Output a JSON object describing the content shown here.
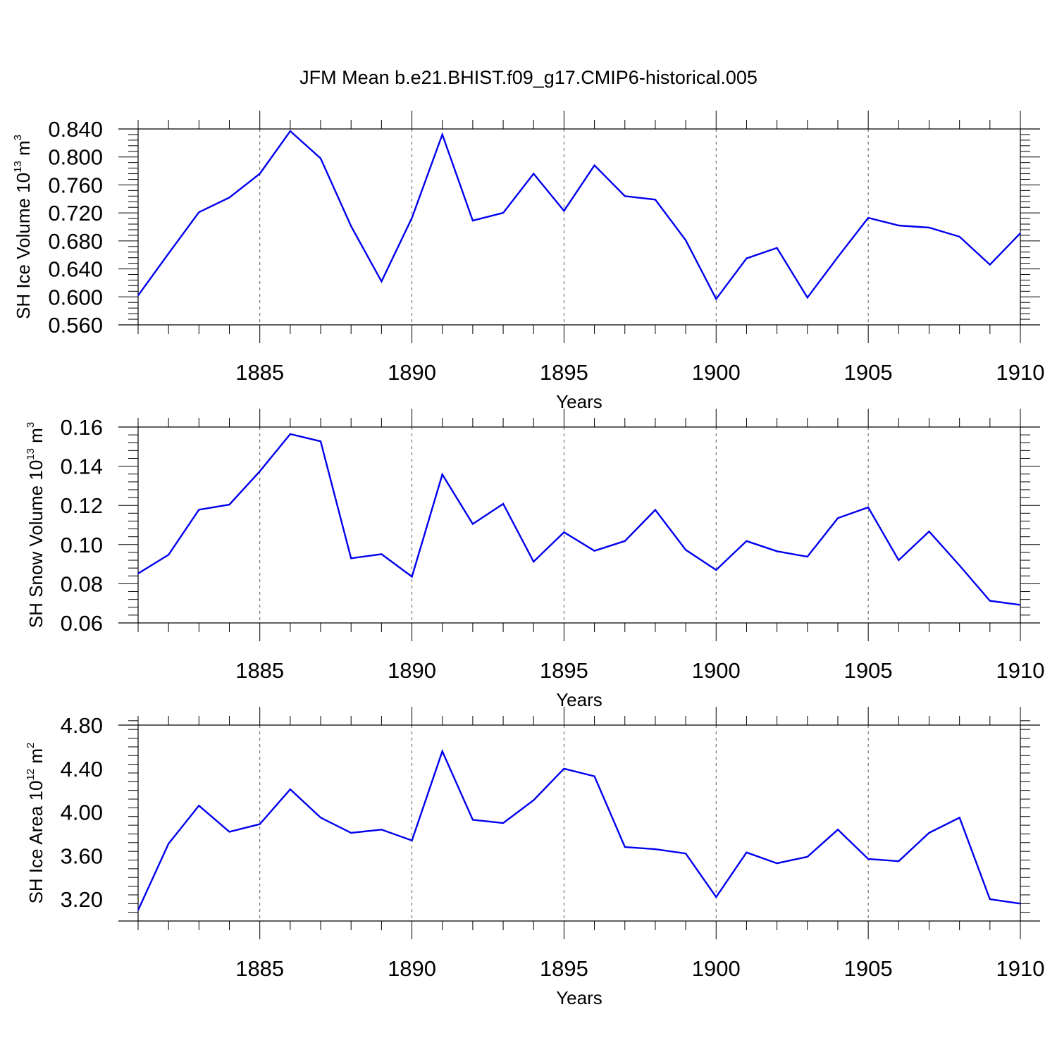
{
  "title": "JFM Mean b.e21.BHIST.f09_g17.CMIP6-historical.005",
  "chart_data": [
    {
      "type": "line",
      "ylabel": "SH Ice Volume 10",
      "ylabel_exp": "13",
      "ylabel_unit": " m",
      "ylabel_unit_exp": "3",
      "xlabel": "Years",
      "xlim": [
        1881,
        1910
      ],
      "ylim": [
        0.56,
        0.84
      ],
      "yticks": [
        0.56,
        0.6,
        0.64,
        0.68,
        0.72,
        0.76,
        0.8,
        0.84
      ],
      "ytick_labels": [
        "0.560",
        "0.600",
        "0.640",
        "0.680",
        "0.720",
        "0.760",
        "0.800",
        "0.840"
      ],
      "xticks": [
        1885,
        1890,
        1895,
        1900,
        1905,
        1910
      ],
      "xtick_labels": [
        "1885",
        "1890",
        "1895",
        "1900",
        "1905",
        "1910"
      ],
      "color": "#0000ee",
      "x": [
        1881,
        1882,
        1883,
        1884,
        1885,
        1886,
        1887,
        1888,
        1889,
        1890,
        1891,
        1892,
        1893,
        1894,
        1895,
        1896,
        1897,
        1898,
        1899,
        1900,
        1901,
        1902,
        1903,
        1904,
        1905,
        1906,
        1907,
        1908,
        1909,
        1910
      ],
      "values": [
        0.602,
        0.662,
        0.721,
        0.742,
        0.776,
        0.837,
        0.798,
        0.701,
        0.622,
        0.713,
        0.832,
        0.709,
        0.72,
        0.776,
        0.723,
        0.788,
        0.744,
        0.739,
        0.681,
        0.597,
        0.655,
        0.67,
        0.599,
        0.657,
        0.713,
        0.702,
        0.699,
        0.686,
        0.646,
        0.691
      ]
    },
    {
      "type": "line",
      "ylabel": "SH Snow Volume 10",
      "ylabel_exp": "13",
      "ylabel_unit": " m",
      "ylabel_unit_exp": "3",
      "xlabel": "Years",
      "xlim": [
        1881,
        1910
      ],
      "ylim": [
        0.06,
        0.16
      ],
      "yticks": [
        0.06,
        0.08,
        0.1,
        0.12,
        0.14,
        0.16
      ],
      "ytick_labels": [
        "0.06",
        "0.08",
        "0.10",
        "0.12",
        "0.14",
        "0.16"
      ],
      "xticks": [
        1885,
        1890,
        1895,
        1900,
        1905,
        1910
      ],
      "xtick_labels": [
        "1885",
        "1890",
        "1895",
        "1900",
        "1905",
        "1910"
      ],
      "color": "#0000ee",
      "x": [
        1881,
        1882,
        1883,
        1884,
        1885,
        1886,
        1887,
        1888,
        1889,
        1890,
        1891,
        1892,
        1893,
        1894,
        1895,
        1896,
        1897,
        1898,
        1899,
        1900,
        1901,
        1902,
        1903,
        1904,
        1905,
        1906,
        1907,
        1908,
        1909,
        1910
      ],
      "values": [
        0.0852,
        0.0948,
        0.1178,
        0.1204,
        0.1374,
        0.1564,
        0.1527,
        0.093,
        0.0951,
        0.0836,
        0.1358,
        0.1105,
        0.1208,
        0.0913,
        0.1063,
        0.0968,
        0.1018,
        0.1177,
        0.0973,
        0.087,
        0.1018,
        0.0966,
        0.0938,
        0.1135,
        0.119,
        0.092,
        0.1067,
        0.0893,
        0.0713,
        0.0692
      ]
    },
    {
      "type": "line",
      "ylabel": "SH Ice Area 10",
      "ylabel_exp": "12",
      "ylabel_unit": " m",
      "ylabel_unit_exp": "2",
      "xlabel": "Years",
      "xlim": [
        1881,
        1910
      ],
      "ylim": [
        3.0,
        4.8
      ],
      "yticks": [
        3.2,
        3.6,
        4.0,
        4.4,
        4.8
      ],
      "ytick_labels": [
        "3.20",
        "3.60",
        "4.00",
        "4.40",
        "4.80"
      ],
      "xticks": [
        1885,
        1890,
        1895,
        1900,
        1905,
        1910
      ],
      "xtick_labels": [
        "1885",
        "1890",
        "1895",
        "1900",
        "1905",
        "1910"
      ],
      "color": "#0000ee",
      "x": [
        1881,
        1882,
        1883,
        1884,
        1885,
        1886,
        1887,
        1888,
        1889,
        1890,
        1891,
        1892,
        1893,
        1894,
        1895,
        1896,
        1897,
        1898,
        1899,
        1900,
        1901,
        1902,
        1903,
        1904,
        1905,
        1906,
        1907,
        1908,
        1909,
        1910
      ],
      "values": [
        3.1,
        3.71,
        4.06,
        3.82,
        3.89,
        4.21,
        3.95,
        3.81,
        3.84,
        3.74,
        4.56,
        3.93,
        3.9,
        4.11,
        4.4,
        4.33,
        3.68,
        3.66,
        3.62,
        3.22,
        3.63,
        3.53,
        3.59,
        3.84,
        3.57,
        3.55,
        3.81,
        3.95,
        3.2,
        3.16
      ]
    }
  ]
}
